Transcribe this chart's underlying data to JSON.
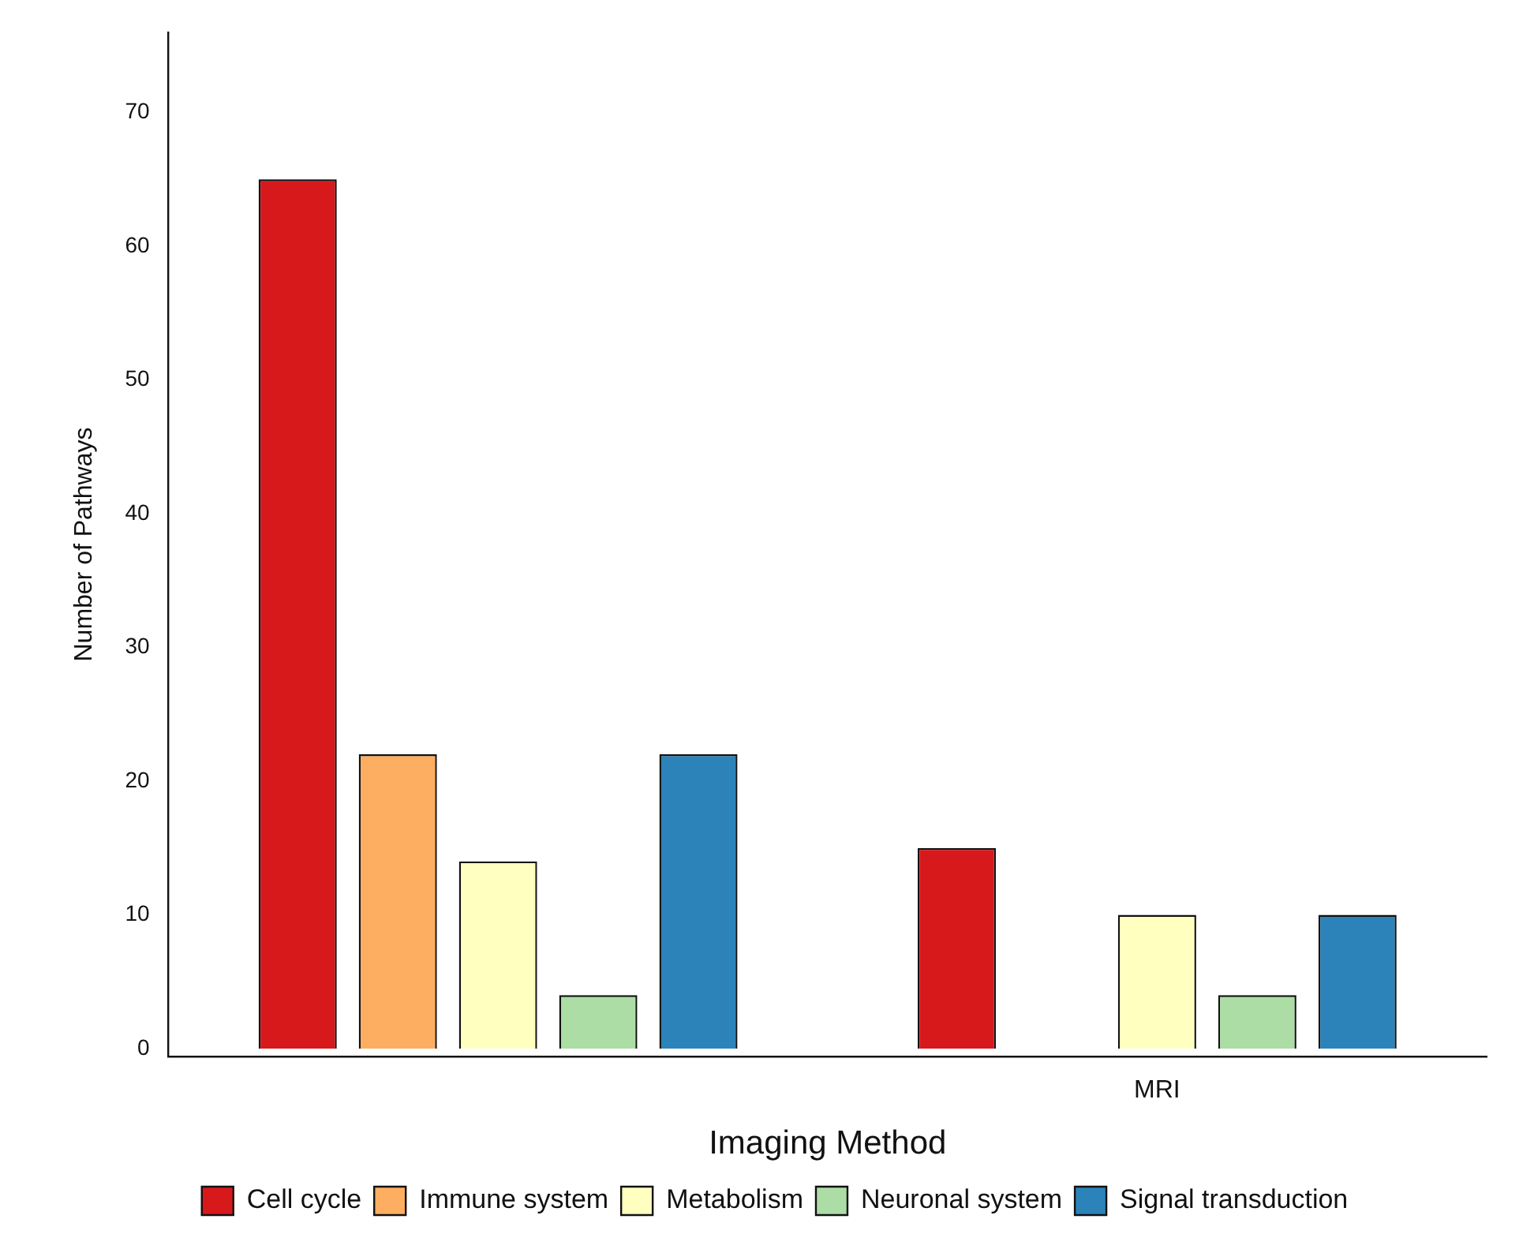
{
  "chart_data": {
    "type": "bar",
    "xlabel": "Imaging Method",
    "ylabel": "Number of Pathways",
    "categories": [
      null,
      "MRI"
    ],
    "series": [
      {
        "name": "Cell cycle",
        "color": "#d7191c",
        "values": [
          65,
          15
        ]
      },
      {
        "name": "Immune system",
        "color": "#fdae61",
        "values": [
          22,
          0
        ]
      },
      {
        "name": "Metabolism",
        "color": "#ffffbf",
        "values": [
          14,
          10
        ]
      },
      {
        "name": "Neuronal system",
        "color": "#abdda4",
        "values": [
          4,
          4
        ]
      },
      {
        "name": "Signal transduction",
        "color": "#2b83ba",
        "values": [
          22,
          10
        ]
      }
    ],
    "ylim": [
      -0.6,
      76
    ],
    "yticks": [
      0,
      10,
      20,
      30,
      40,
      50,
      60,
      70
    ],
    "grid": false,
    "legend": "bottom"
  }
}
